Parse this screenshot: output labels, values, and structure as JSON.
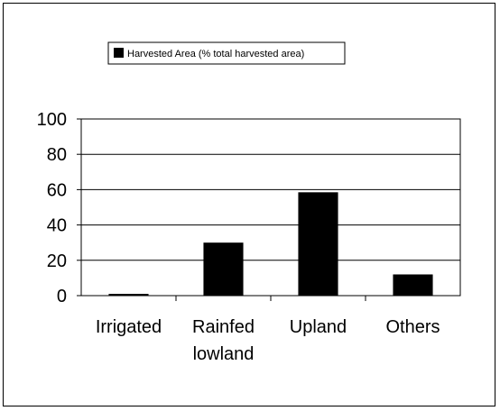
{
  "chart_data": {
    "type": "bar",
    "categories": [
      "Irrigated",
      "Rainfed lowland",
      "Upland",
      "Others"
    ],
    "category_lines": [
      [
        "Irrigated"
      ],
      [
        "Rainfed",
        "lowland"
      ],
      [
        "Upland"
      ],
      [
        "Others"
      ]
    ],
    "series": [
      {
        "name": "Harvested Area (% total harvested area)",
        "values": [
          1,
          30,
          58.5,
          12
        ],
        "color": "#000000"
      }
    ],
    "yticks": [
      0,
      20,
      40,
      60,
      80,
      100
    ],
    "ylim": [
      0,
      100
    ],
    "grid": true,
    "legend": "top-center",
    "title": "",
    "xlabel": "",
    "ylabel": ""
  }
}
